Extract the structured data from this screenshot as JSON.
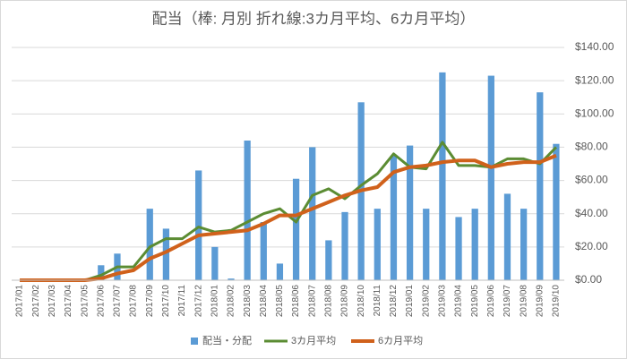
{
  "chart_data": {
    "type": "bar",
    "title": "配当（棒: 月別  折れ線:3カ月平均、6カ月平均）",
    "categories": [
      "2017/01",
      "2017/02",
      "2017/03",
      "2017/04",
      "2017/05",
      "2017/06",
      "2017/07",
      "2017/08",
      "2017/09",
      "2017/10",
      "2017/11",
      "2017/12",
      "2018/01",
      "2018/02",
      "2018/03",
      "2018/04",
      "2018/05",
      "2018/06",
      "2018/07",
      "2018/08",
      "2018/09",
      "2018/10",
      "2018/11",
      "2018/12",
      "2019/01",
      "2019/02",
      "2019/03",
      "2019/04",
      "2019/05",
      "2019/06",
      "2019/07",
      "2019/08",
      "2019/09",
      "2019/10"
    ],
    "series": [
      {
        "name": "配当・分配",
        "type": "bar",
        "color": "#5b9bd5",
        "values": [
          0,
          0,
          0,
          0,
          0,
          9,
          16,
          0,
          43,
          31,
          0,
          66,
          20,
          1,
          84,
          35,
          10,
          61,
          80,
          24,
          41,
          107,
          43,
          75,
          81,
          43,
          125,
          38,
          43,
          123,
          52,
          43,
          113,
          82
        ]
      },
      {
        "name": "3カ月平均",
        "type": "line",
        "color": "#5b8c33",
        "values": [
          0,
          0,
          0,
          0,
          0,
          3,
          8,
          8,
          20,
          25,
          25,
          32,
          29,
          30,
          35,
          40,
          43,
          35,
          51,
          55,
          49,
          57,
          64,
          76,
          68,
          67,
          83,
          69,
          69,
          68,
          73,
          73,
          70,
          80
        ]
      },
      {
        "name": "6カ月平均",
        "type": "line",
        "color": "#d0611b",
        "values": [
          0,
          0,
          0,
          0,
          0,
          1,
          4,
          6,
          13,
          17,
          22,
          27,
          28,
          29,
          30,
          34,
          39,
          39,
          43,
          47,
          51,
          54,
          56,
          65,
          68,
          69,
          71,
          72,
          72,
          68,
          70,
          71,
          71,
          75
        ]
      }
    ],
    "ylim": [
      0,
      140
    ],
    "yticks": [
      {
        "value": 0,
        "label": "$0.00"
      },
      {
        "value": 20,
        "label": "$20.00"
      },
      {
        "value": 40,
        "label": "$40.00"
      },
      {
        "value": 60,
        "label": "$60.00"
      },
      {
        "value": 80,
        "label": "$80.00"
      },
      {
        "value": 100,
        "label": "$100.00"
      },
      {
        "value": 120,
        "label": "$120.00"
      },
      {
        "value": 140,
        "label": "$140.00"
      }
    ],
    "grid": true,
    "legend": "bottom"
  }
}
